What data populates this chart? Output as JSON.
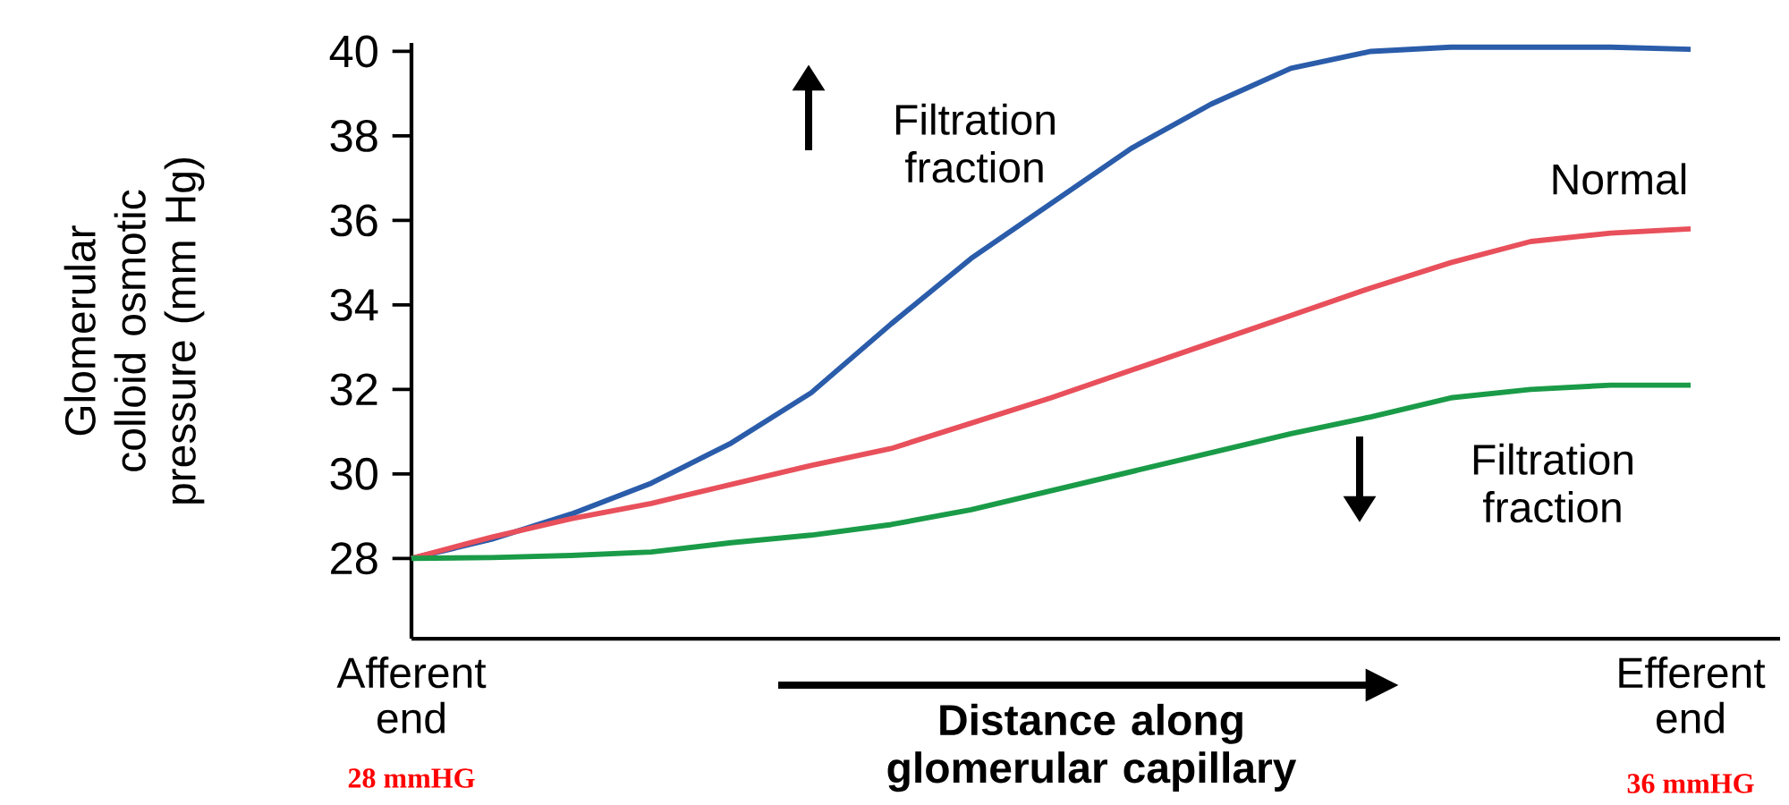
{
  "chart_data": {
    "type": "line",
    "xlabel": "Distance along glomerular capillary",
    "ylabel": "Glomerular colloid osmotic pressure (mm Hg)",
    "categories": [
      "Afferent end",
      null,
      null,
      null,
      null,
      null,
      null,
      null,
      null,
      null,
      null,
      null,
      null,
      null,
      null,
      null,
      "Efferent end"
    ],
    "series": [
      {
        "name": "Filtration fraction",
        "color": "#2a5caa",
        "values": [
          28.0,
          28.45,
          29.05,
          29.78,
          30.73,
          31.92,
          33.55,
          35.1,
          36.4,
          37.7,
          38.75,
          39.6,
          40.0,
          40.1,
          40.1,
          40.1,
          40.05
        ]
      },
      {
        "name": "Normal",
        "color": "#e8505b",
        "values": [
          28.0,
          28.5,
          28.94,
          29.3,
          29.75,
          30.2,
          30.6,
          31.2,
          31.8,
          32.45,
          33.1,
          33.75,
          34.4,
          35.0,
          35.5,
          35.7,
          35.8
        ]
      },
      {
        "name": "Filtration fraction",
        "color": "#1a9b48",
        "values": [
          28.0,
          28.02,
          28.07,
          28.15,
          28.37,
          28.55,
          28.8,
          29.15,
          29.6,
          30.05,
          30.5,
          30.95,
          31.35,
          31.8,
          32.0,
          32.1,
          32.1
        ]
      }
    ],
    "ylim": [
      26.1,
      40.2
    ],
    "yticks": [
      28,
      30,
      32,
      34,
      36,
      38,
      40
    ],
    "annotations": [
      "28 mmHG",
      "36 mmHG"
    ]
  }
}
